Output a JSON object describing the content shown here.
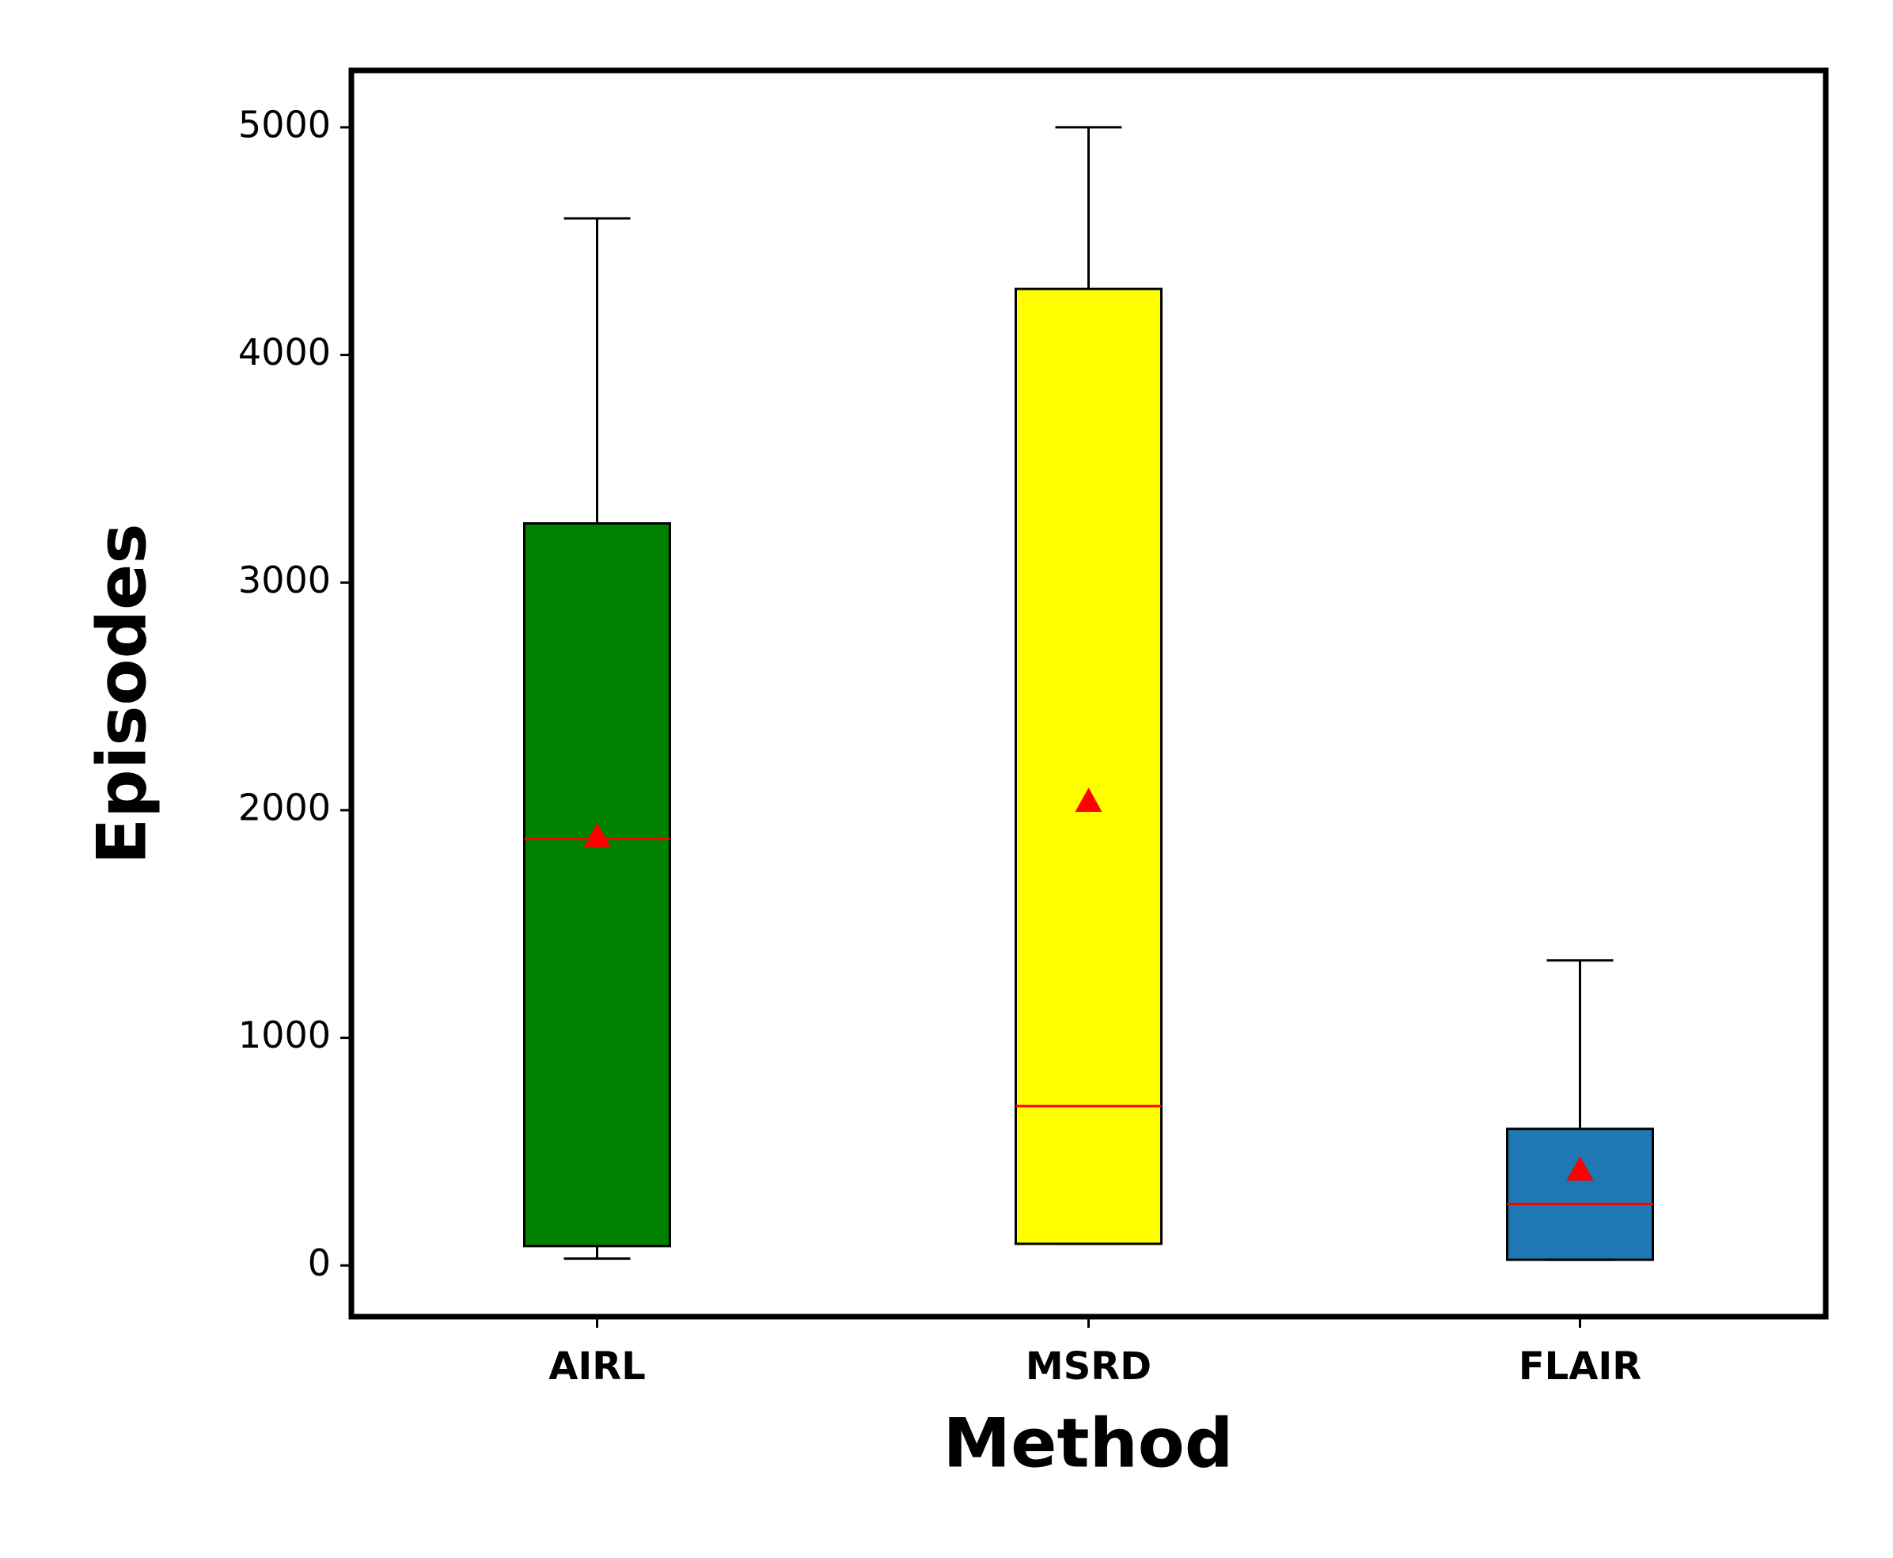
{
  "chart_data": {
    "type": "box",
    "x_label": "Method",
    "y_label": "Episodes",
    "categories": [
      "AIRL",
      "MSRD",
      "FLAIR"
    ],
    "boxes": [
      {
        "whisker_low": 30,
        "q1": 85,
        "median": 1875,
        "mean": 1885,
        "q3": 3260,
        "whisker_high": 4600,
        "color": "#008000"
      },
      {
        "whisker_low": 95,
        "q1": 95,
        "median": 700,
        "mean": 2040,
        "q3": 4290,
        "whisker_high": 5000,
        "color": "#ffff00"
      },
      {
        "whisker_low": 25,
        "q1": 25,
        "median": 270,
        "mean": 420,
        "q3": 600,
        "whisker_high": 1340,
        "color": "#1f77b4"
      }
    ],
    "median_color": "#ff0000",
    "mean_color": "#ff0000",
    "ylim": [
      -225,
      5250
    ],
    "yticks": [
      0,
      1000,
      2000,
      3000,
      4000,
      5000
    ]
  }
}
